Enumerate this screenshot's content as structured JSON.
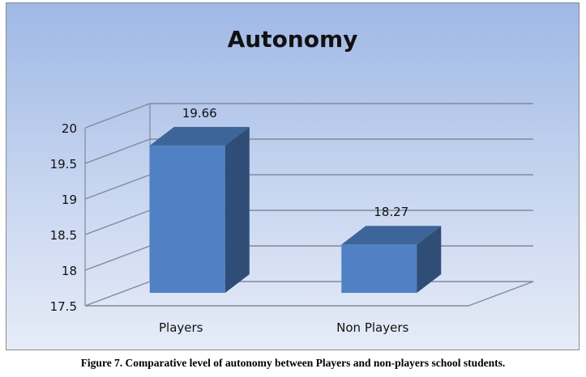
{
  "chart_data": {
    "type": "bar",
    "title": "Autonomy",
    "categories": [
      "Players",
      "Non Players"
    ],
    "values": [
      19.66,
      18.27
    ],
    "data_labels": [
      "19.66",
      "18.27"
    ],
    "ylim": [
      17.5,
      20
    ],
    "yticks": [
      "17.5",
      "18",
      "18.5",
      "19",
      "19.5",
      "20"
    ],
    "xlabel": "",
    "ylabel": "",
    "grid": true,
    "style": "3d-column",
    "bar_color": "#4f81c4",
    "background": "#a4bce7"
  },
  "caption": "Figure 7. Comparative level of autonomy between Players and non-players school students."
}
